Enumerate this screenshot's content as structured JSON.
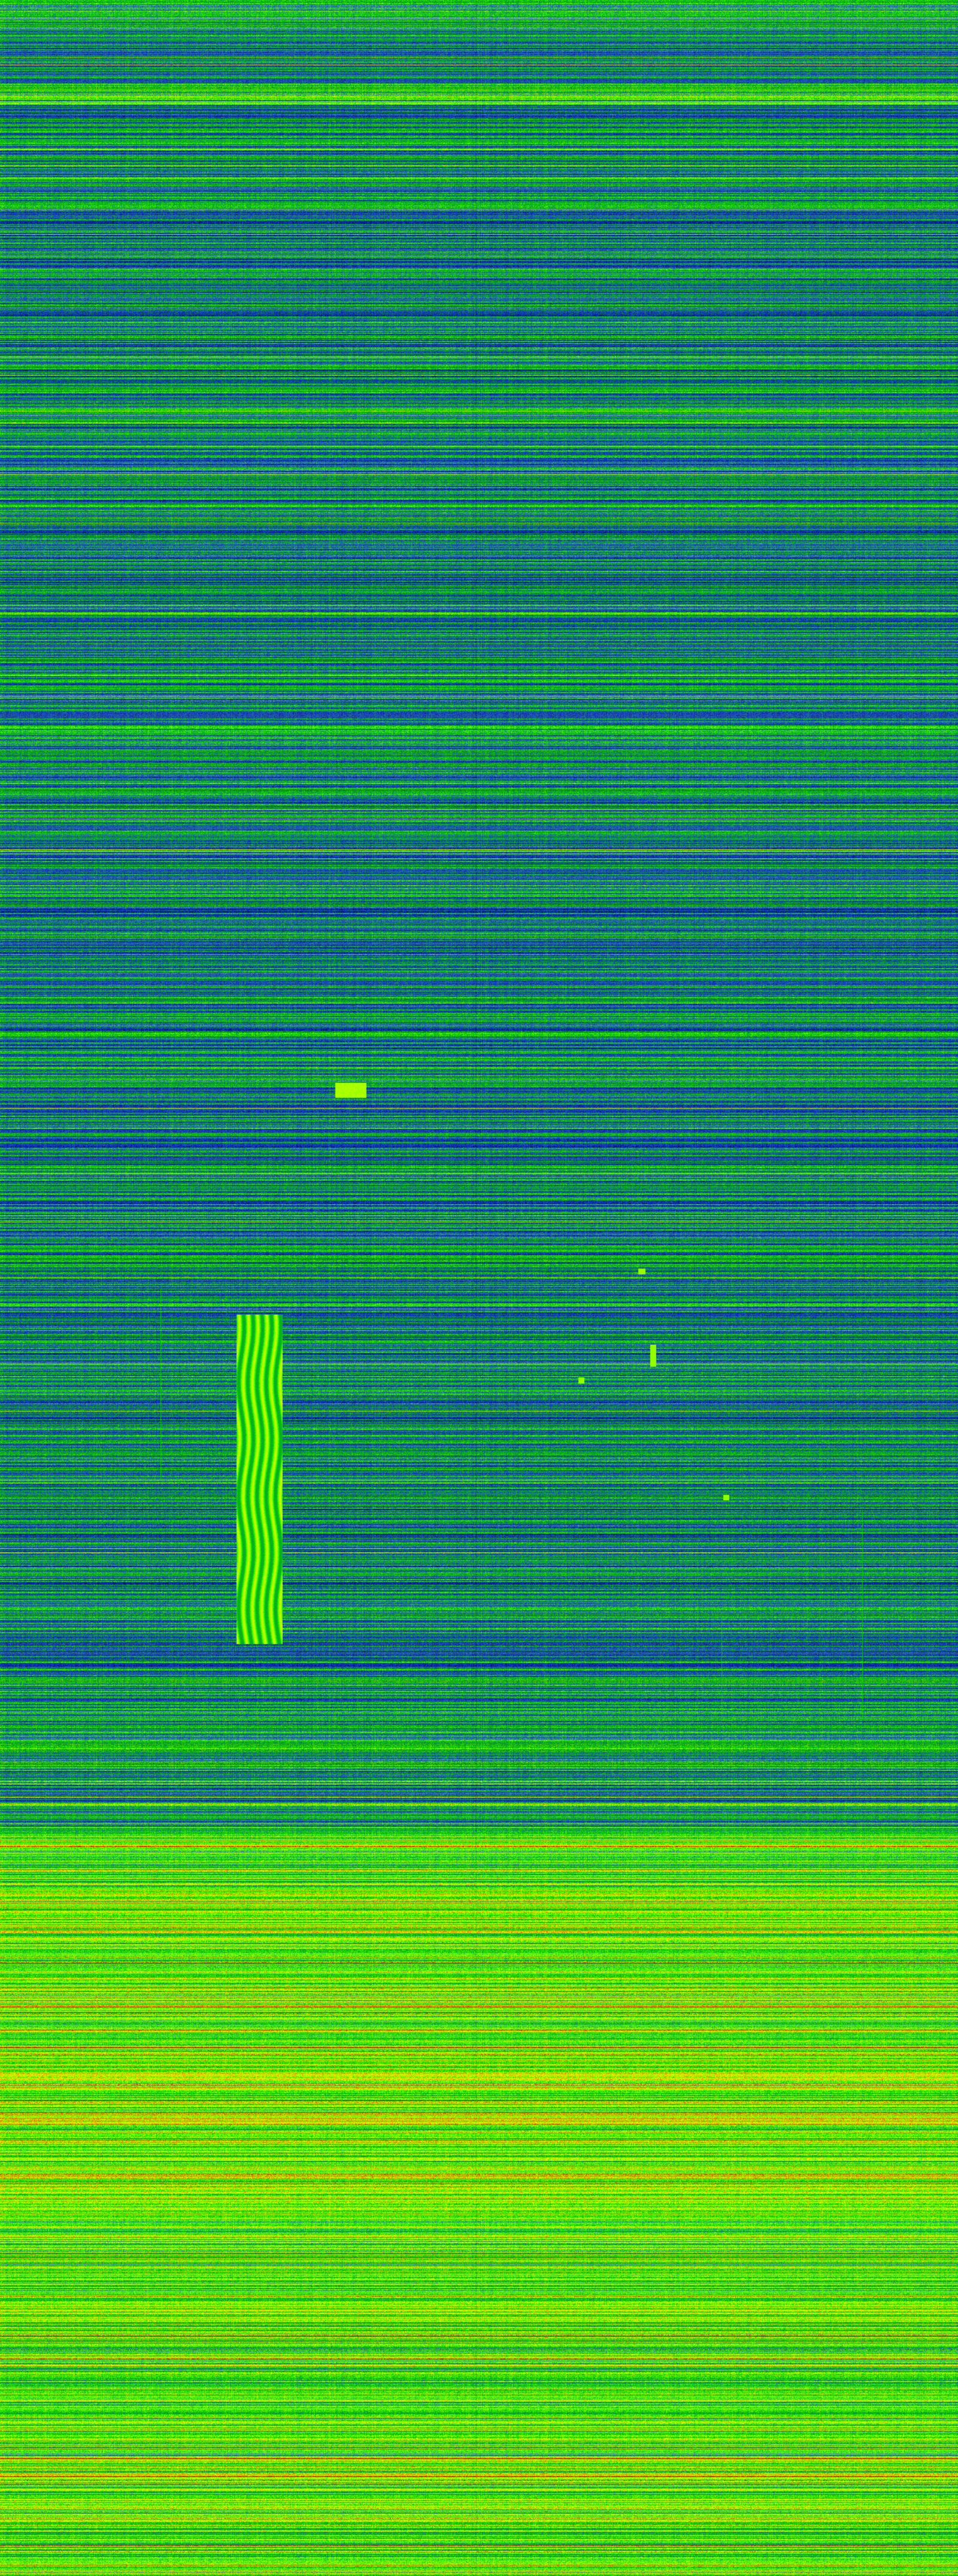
{
  "view": {
    "type": "waterfall-spectrogram",
    "colormap": [
      "#000010",
      "#0a1a8c",
      "#1438e0",
      "#1a8a5a",
      "#00c800",
      "#50ff00",
      "#e8ff00",
      "#ff9000",
      "#e00000"
    ],
    "features": [
      {
        "name": "striped-signal-column"
      },
      {
        "name": "bright-rectangular-burst"
      },
      {
        "name": "isolated-carrier-dots"
      },
      {
        "name": "high-energy-lower-band"
      }
    ]
  }
}
